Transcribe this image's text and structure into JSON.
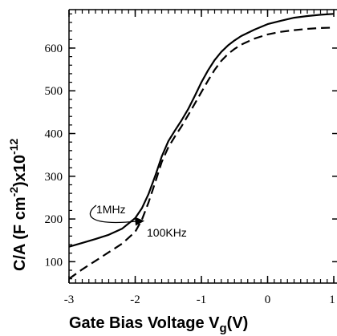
{
  "chart_data": {
    "type": "line",
    "xlim": [
      -3,
      1
    ],
    "ylim": [
      50,
      690
    ],
    "x_ticks": [
      -3,
      -2,
      -1,
      0,
      1
    ],
    "x_tick_labels": [
      "-3",
      "-2",
      "-1",
      "0",
      "1"
    ],
    "y_ticks": [
      100,
      200,
      300,
      400,
      500,
      600
    ],
    "y_tick_labels": [
      "100",
      "200",
      "300",
      "400",
      "500",
      "600"
    ],
    "xlabel": {
      "main": "Gate Bias Voltage V",
      "sub": "g",
      "tail": "(V)"
    },
    "ylabel": {
      "pre": "C/A  (F cm",
      "sup1": "-2",
      "mid": ")x10",
      "sup2": "-12"
    },
    "grid": false,
    "series": [
      {
        "name": "1MHz",
        "style": "solid",
        "color": "#000000",
        "x": [
          -3.0,
          -2.8,
          -2.6,
          -2.4,
          -2.2,
          -2.0,
          -1.9,
          -1.8,
          -1.7,
          -1.6,
          -1.5,
          -1.4,
          -1.3,
          -1.2,
          -1.1,
          -1.0,
          -0.9,
          -0.8,
          -0.7,
          -0.6,
          -0.5,
          -0.4,
          -0.2,
          0.0,
          0.2,
          0.4,
          0.6,
          0.8,
          1.0
        ],
        "y": [
          135,
          144,
          153,
          163,
          177,
          202,
          225,
          258,
          300,
          346,
          382,
          407,
          431,
          457,
          488,
          520,
          548,
          572,
          591,
          606,
          618,
          628,
          643,
          656,
          664,
          671,
          675,
          678,
          680
        ]
      },
      {
        "name": "100KHz",
        "style": "dashed",
        "color": "#000000",
        "x": [
          -3.0,
          -2.8,
          -2.6,
          -2.4,
          -2.2,
          -2.0,
          -1.9,
          -1.8,
          -1.7,
          -1.6,
          -1.5,
          -1.4,
          -1.3,
          -1.2,
          -1.1,
          -1.0,
          -0.9,
          -0.8,
          -0.7,
          -0.6,
          -0.5,
          -0.4,
          -0.2,
          0.0,
          0.2,
          0.4,
          0.6,
          0.8,
          1.0
        ],
        "y": [
          60,
          82,
          102,
          122,
          142,
          170,
          198,
          238,
          285,
          333,
          368,
          393,
          417,
          443,
          470,
          497,
          524,
          549,
          570,
          586,
          598,
          608,
          622,
          632,
          638,
          642,
          645,
          647,
          648
        ]
      }
    ],
    "annotations": [
      {
        "text": "1MHz"
      },
      {
        "text": "100KHz"
      }
    ]
  }
}
